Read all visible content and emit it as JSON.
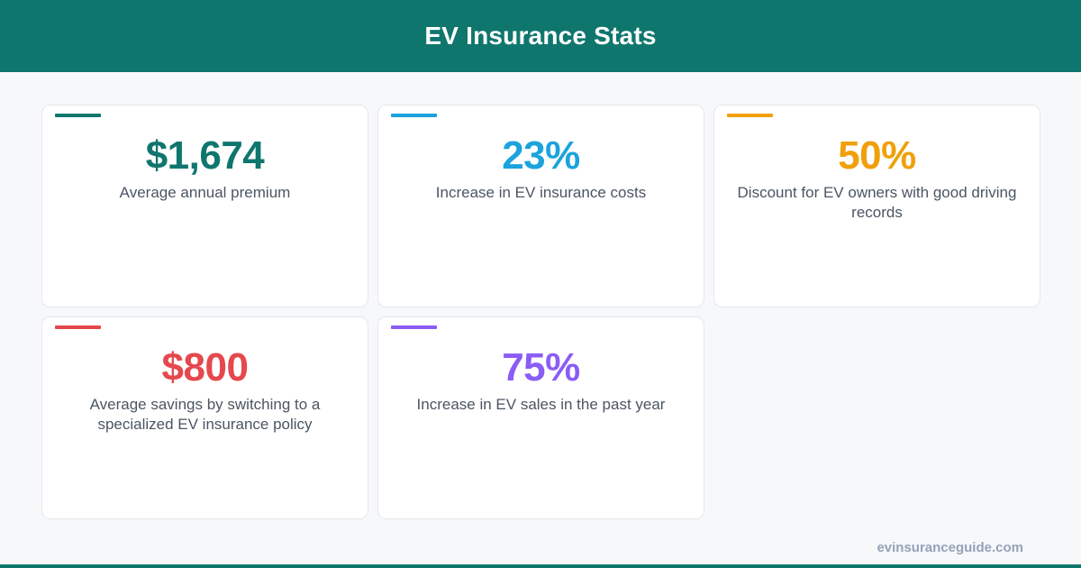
{
  "header": {
    "title": "EV Insurance Stats"
  },
  "stats": [
    {
      "value": "$1,674",
      "label": "Average annual premium",
      "color": "#0f766e"
    },
    {
      "value": "23%",
      "label": "Increase in EV insurance costs",
      "color": "#1ba3dd"
    },
    {
      "value": "50%",
      "label": "Discount for EV owners with good driving records",
      "color": "#f0a00a"
    },
    {
      "value": "$800",
      "label": "Average savings by switching to a specialized EV insurance policy",
      "color": "#e5484d"
    },
    {
      "value": "75%",
      "label": "Increase in EV sales in the past year",
      "color": "#8b5cf6"
    }
  ],
  "footer": {
    "site": "evinsuranceguide.com"
  }
}
